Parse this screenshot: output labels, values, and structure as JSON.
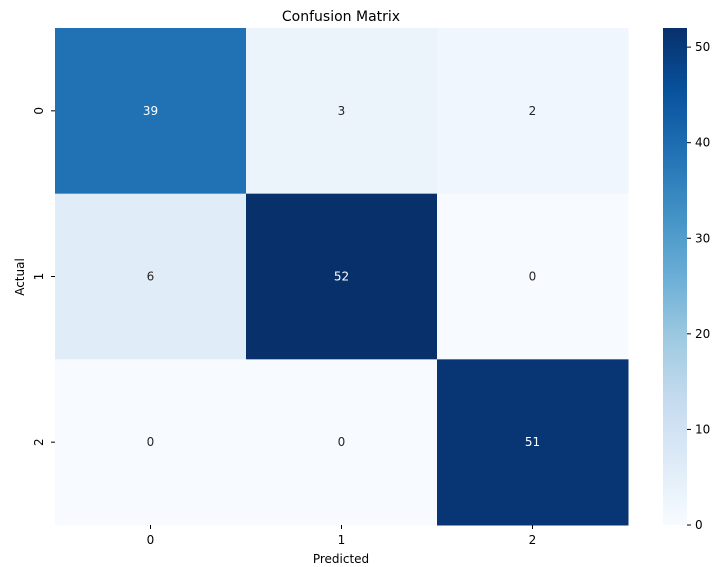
{
  "chart_data": {
    "type": "heatmap",
    "title": "Confusion Matrix",
    "xlabel": "Predicted",
    "ylabel": "Actual",
    "x_categories": [
      "0",
      "1",
      "2"
    ],
    "y_categories": [
      "0",
      "1",
      "2"
    ],
    "values": [
      [
        39,
        3,
        2
      ],
      [
        6,
        52,
        0
      ],
      [
        0,
        0,
        51
      ]
    ],
    "colorscale": "Blues",
    "vmin": 0,
    "vmax": 52,
    "colorbar_ticks": [
      "0",
      "10",
      "20",
      "30",
      "40",
      "50"
    ],
    "colorbar_tick_values": [
      0,
      10,
      20,
      30,
      40,
      50
    ]
  }
}
